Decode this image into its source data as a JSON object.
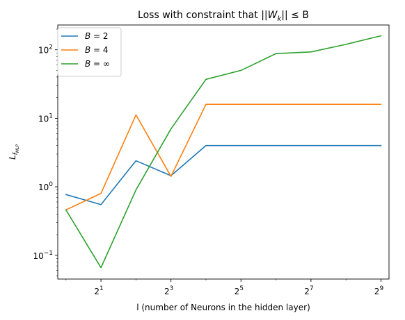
{
  "chart_data": {
    "type": "line",
    "title_prefix": "Loss with constraint that ",
    "title_math": "||W",
    "title_math_sub": "k",
    "title_math_suffix": "|| ≤ B",
    "xlabel": "l (number of Neurons in the hidden layer)",
    "ylabel_main": "L",
    "ylabel_sub": "f",
    "ylabel_subsub": "MLP",
    "x_scale": "log2",
    "y_scale": "log10",
    "xlim": [
      0.85,
      600
    ],
    "ylim": [
      0.045,
      230
    ],
    "x_ticks": [
      {
        "value": 2,
        "base": "2",
        "exp": "1"
      },
      {
        "value": 8,
        "base": "2",
        "exp": "3"
      },
      {
        "value": 32,
        "base": "2",
        "exp": "5"
      },
      {
        "value": 128,
        "base": "2",
        "exp": "7"
      },
      {
        "value": 512,
        "base": "2",
        "exp": "9"
      }
    ],
    "y_ticks": [
      {
        "value": 0.1,
        "base": "10",
        "exp": "−1"
      },
      {
        "value": 1,
        "base": "10",
        "exp": "0"
      },
      {
        "value": 10,
        "base": "10",
        "exp": "1"
      },
      {
        "value": 100,
        "base": "10",
        "exp": "2"
      }
    ],
    "legend_position": "top-left",
    "x": [
      1,
      2,
      4,
      8,
      16,
      32,
      64,
      128,
      256,
      512
    ],
    "series": [
      {
        "name": "B = 2",
        "label_var": "B",
        "label_val": " = 2",
        "color": "#1f77b4",
        "values": [
          0.77,
          0.55,
          2.4,
          1.45,
          4.0,
          4.0,
          4.0,
          4.0,
          4.0,
          4.0
        ]
      },
      {
        "name": "B = 4",
        "label_var": "B",
        "label_val": " = 4",
        "color": "#ff7f0e",
        "values": [
          0.46,
          0.8,
          11.2,
          1.42,
          16.0,
          16.0,
          16.0,
          16.0,
          16.0,
          16.0
        ]
      },
      {
        "name": "B = ∞",
        "label_var": "B",
        "label_val": " = ∞",
        "color": "#2ca02c",
        "values": [
          0.46,
          0.066,
          0.9,
          7.0,
          37.0,
          50.0,
          88.0,
          93.0,
          120.0,
          160.0
        ]
      }
    ]
  }
}
